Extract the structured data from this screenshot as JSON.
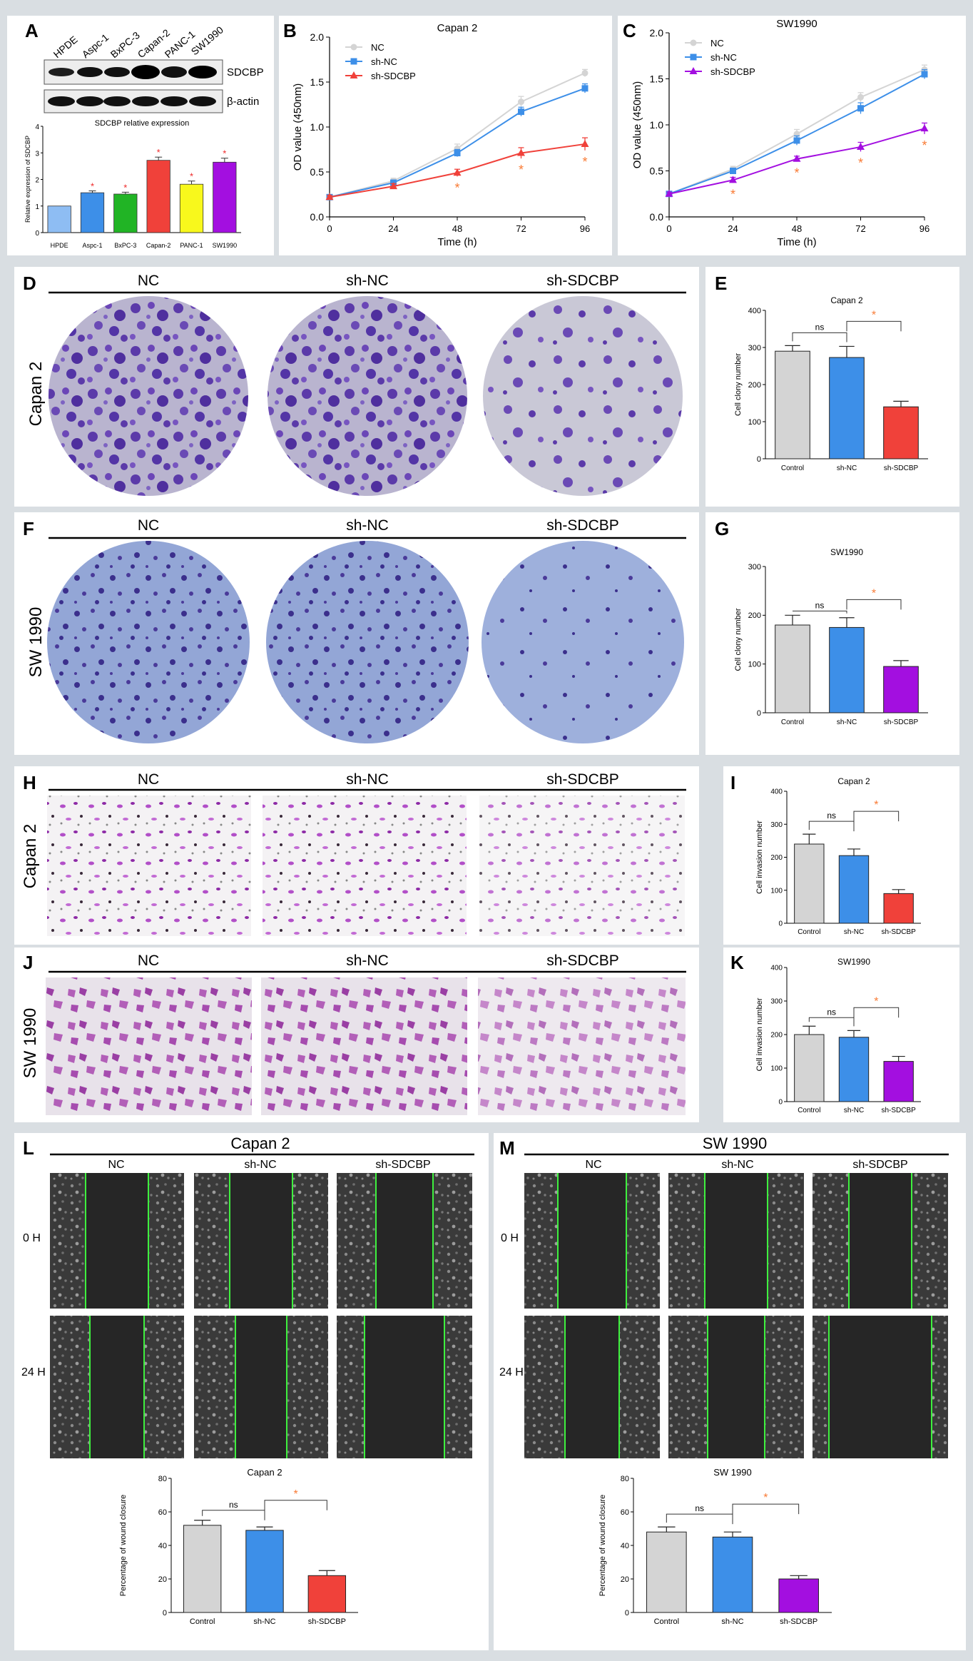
{
  "panel_letters": {
    "A": "A",
    "B": "B",
    "C": "C",
    "D": "D",
    "E": "E",
    "F": "F",
    "G": "G",
    "H": "H",
    "I": "I",
    "J": "J",
    "K": "K",
    "L": "L",
    "M": "M"
  },
  "colors": {
    "gray": "#d4d4d4",
    "blue": "#3d8fe8",
    "red": "#f0413a",
    "purple": "#a30fe0",
    "green": "#21b425",
    "yellow": "#f8f81c",
    "lightblue": "#8ebdf3",
    "star_red": "#ef2a2a",
    "star_orange": "#f97b35",
    "crystal_violet": "#5a3aa8",
    "sw_plate": "#8da2d3",
    "wound_green": "#3ef03e"
  },
  "western": {
    "lanes": [
      "HPDE",
      "Aspc-1",
      "BxPC-3",
      "Capan-2",
      "PANC-1",
      "SW1990"
    ],
    "protein_labels": [
      "SDCBP",
      "β-actin"
    ]
  },
  "plates": {
    "conditions": [
      "NC",
      "sh-NC",
      "sh-SDCBP"
    ],
    "row_labels": [
      "Capan 2",
      "SW 1990",
      "Capan 2",
      "SW 1990"
    ]
  },
  "wound": {
    "left_title": "Capan 2",
    "right_title": "SW 1990",
    "conditions": [
      "NC",
      "sh-NC",
      "sh-SDCBP"
    ],
    "time_labels": [
      "0 H",
      "24 H"
    ]
  },
  "chart_data": [
    {
      "id": "A",
      "type": "bar",
      "title": "SDCBP relative expression",
      "ylabel": "Relative expression of SDCBP",
      "ylim": [
        0,
        4
      ],
      "yticks": [
        0,
        1,
        2,
        3,
        4
      ],
      "categories": [
        "HPDE",
        "Aspc-1",
        "BxPC-3",
        "Capan-2",
        "PANC-1",
        "SW1990"
      ],
      "values": [
        1.0,
        1.5,
        1.45,
        2.72,
        1.82,
        2.65
      ],
      "errors": [
        0,
        0.07,
        0.07,
        0.12,
        0.12,
        0.15
      ],
      "bar_colors": [
        "lightblue",
        "blue",
        "green",
        "red",
        "yellow",
        "purple"
      ],
      "significance": [
        "",
        "*",
        "*",
        "*",
        "*",
        "*"
      ]
    },
    {
      "id": "B",
      "type": "line",
      "title": "Capan 2",
      "xlabel": "Time (h)",
      "ylabel": "OD value (450nm)",
      "x": [
        0,
        24,
        48,
        72,
        96
      ],
      "xlim": [
        0,
        96
      ],
      "ylim": [
        0,
        2.0
      ],
      "yticks": [
        0.0,
        0.5,
        1.0,
        1.5,
        2.0
      ],
      "legend": "top-left",
      "series": [
        {
          "name": "NC",
          "values": [
            0.22,
            0.4,
            0.76,
            1.28,
            1.6
          ],
          "errors": [
            0.02,
            0.03,
            0.05,
            0.06,
            0.04
          ],
          "color": "gray",
          "marker": "circle"
        },
        {
          "name": "sh-NC",
          "values": [
            0.22,
            0.38,
            0.71,
            1.17,
            1.43
          ],
          "errors": [
            0.02,
            0.03,
            0.04,
            0.05,
            0.05
          ],
          "color": "blue",
          "marker": "square"
        },
        {
          "name": "sh-SDCBP",
          "values": [
            0.22,
            0.34,
            0.49,
            0.71,
            0.81
          ],
          "errors": [
            0.02,
            0.03,
            0.04,
            0.06,
            0.07
          ],
          "color": "red",
          "marker": "triangle"
        }
      ],
      "significance_x": [
        48,
        72,
        96
      ]
    },
    {
      "id": "C",
      "type": "line",
      "title": "SW1990",
      "xlabel": "Time (h)",
      "ylabel": "OD value (450nm)",
      "x": [
        0,
        24,
        48,
        72,
        96
      ],
      "xlim": [
        0,
        96
      ],
      "ylim": [
        0,
        2.0
      ],
      "yticks": [
        0.0,
        0.5,
        1.0,
        1.5,
        2.0
      ],
      "legend": "top-left",
      "series": [
        {
          "name": "NC",
          "values": [
            0.25,
            0.52,
            0.9,
            1.3,
            1.6
          ],
          "errors": [
            0.02,
            0.03,
            0.05,
            0.05,
            0.05
          ],
          "color": "gray",
          "marker": "circle"
        },
        {
          "name": "sh-NC",
          "values": [
            0.25,
            0.5,
            0.83,
            1.18,
            1.55
          ],
          "errors": [
            0.02,
            0.03,
            0.05,
            0.06,
            0.05
          ],
          "color": "blue",
          "marker": "square"
        },
        {
          "name": "sh-SDCBP",
          "values": [
            0.25,
            0.4,
            0.63,
            0.76,
            0.96
          ],
          "errors": [
            0.02,
            0.03,
            0.03,
            0.05,
            0.06
          ],
          "color": "purple",
          "marker": "triangle"
        }
      ],
      "significance_x": [
        24,
        48,
        72,
        96
      ]
    },
    {
      "id": "E",
      "type": "bar",
      "title": "Capan 2",
      "ylabel": "Cell clony number",
      "ylim": [
        0,
        400
      ],
      "yticks": [
        0,
        100,
        200,
        300,
        400
      ],
      "categories": [
        "Control",
        "sh-NC",
        "sh-SDCBP"
      ],
      "values": [
        290,
        273,
        140
      ],
      "errors": [
        15,
        30,
        15
      ],
      "bar_colors": [
        "gray",
        "blue",
        "red"
      ],
      "brackets": [
        {
          "from": 0,
          "to": 1,
          "label": "ns"
        },
        {
          "from": 1,
          "to": 2,
          "label": "*"
        }
      ]
    },
    {
      "id": "G",
      "type": "bar",
      "title": "SW1990",
      "ylabel": "Cell clony number",
      "ylim": [
        0,
        300
      ],
      "yticks": [
        0,
        100,
        200,
        300
      ],
      "categories": [
        "Control",
        "sh-NC",
        "sh-SDCBP"
      ],
      "values": [
        180,
        175,
        95
      ],
      "errors": [
        20,
        20,
        12
      ],
      "bar_colors": [
        "gray",
        "blue",
        "purple"
      ],
      "brackets": [
        {
          "from": 0,
          "to": 1,
          "label": "ns"
        },
        {
          "from": 1,
          "to": 2,
          "label": "*"
        }
      ]
    },
    {
      "id": "I",
      "type": "bar",
      "title": "Capan 2",
      "ylabel": "Cell invasion number",
      "ylim": [
        0,
        400
      ],
      "yticks": [
        0,
        100,
        200,
        300,
        400
      ],
      "categories": [
        "Control",
        "sh-NC",
        "sh-SDCBP"
      ],
      "values": [
        240,
        205,
        90
      ],
      "errors": [
        30,
        20,
        12
      ],
      "bar_colors": [
        "gray",
        "blue",
        "red"
      ],
      "brackets": [
        {
          "from": 0,
          "to": 1,
          "label": "ns"
        },
        {
          "from": 1,
          "to": 2,
          "label": "*"
        }
      ]
    },
    {
      "id": "K",
      "type": "bar",
      "title": "SW1990",
      "ylabel": "Cell invasion number",
      "ylim": [
        0,
        400
      ],
      "yticks": [
        0,
        100,
        200,
        300,
        400
      ],
      "categories": [
        "Control",
        "sh-NC",
        "sh-SDCBP"
      ],
      "values": [
        200,
        192,
        120
      ],
      "errors": [
        25,
        20,
        15
      ],
      "bar_colors": [
        "gray",
        "blue",
        "purple"
      ],
      "brackets": [
        {
          "from": 0,
          "to": 1,
          "label": "ns"
        },
        {
          "from": 1,
          "to": 2,
          "label": "*"
        }
      ]
    },
    {
      "id": "L",
      "type": "bar",
      "title": "Capan 2",
      "ylabel": "Percentage of wound closure",
      "ylim": [
        0,
        80
      ],
      "yticks": [
        0,
        20,
        40,
        60,
        80
      ],
      "categories": [
        "Control",
        "sh-NC",
        "sh-SDCBP"
      ],
      "values": [
        52,
        49,
        22
      ],
      "errors": [
        3,
        2,
        3
      ],
      "bar_colors": [
        "gray",
        "blue",
        "red"
      ],
      "brackets": [
        {
          "from": 0,
          "to": 1,
          "label": "ns"
        },
        {
          "from": 1,
          "to": 2,
          "label": "*"
        }
      ]
    },
    {
      "id": "M",
      "type": "bar",
      "title": "SW 1990",
      "ylabel": "Percentage of wound closure",
      "ylim": [
        0,
        80
      ],
      "yticks": [
        0,
        20,
        40,
        60,
        80
      ],
      "categories": [
        "Control",
        "sh-NC",
        "sh-SDCBP"
      ],
      "values": [
        48,
        45,
        20
      ],
      "errors": [
        3,
        3,
        2
      ],
      "bar_colors": [
        "gray",
        "blue",
        "purple"
      ],
      "brackets": [
        {
          "from": 0,
          "to": 1,
          "label": "ns"
        },
        {
          "from": 1,
          "to": 2,
          "label": "*"
        }
      ]
    }
  ]
}
